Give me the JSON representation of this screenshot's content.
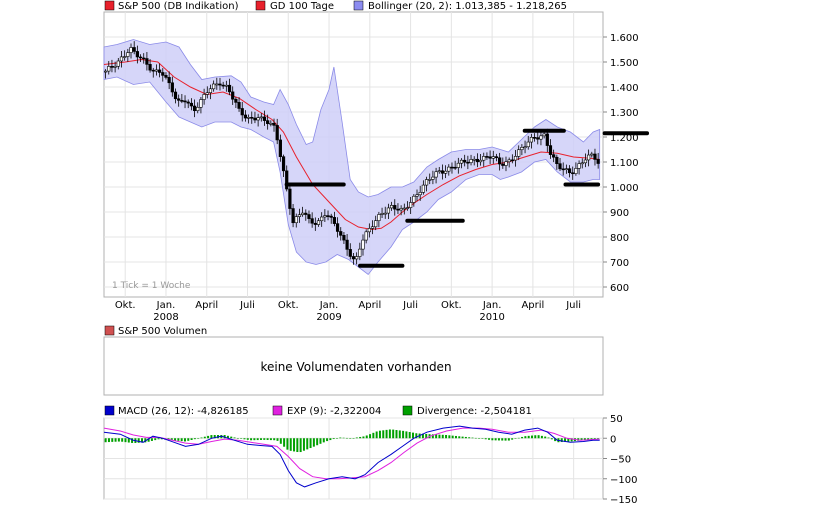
{
  "chart_data": [
    {
      "type": "candlestick",
      "legend": [
        {
          "label": "S&P 500 (DB Indikation)",
          "color": "#e8212c"
        },
        {
          "label": "GD 100 Tage",
          "color": "#e8212c"
        },
        {
          "label": "Bollinger (20, 2): 1.013,385 - 1.218,265",
          "color": "#8c8cf0"
        }
      ],
      "ylim": [
        560,
        1700
      ],
      "yticks": [
        600,
        700,
        800,
        900,
        1000,
        1100,
        1200,
        1300,
        1400,
        1500,
        1600
      ],
      "ytick_labels": [
        "600",
        "700",
        "800",
        "900",
        "1.000",
        "1.100",
        "1.200",
        "1.300",
        "1.400",
        "1.500",
        "1.600"
      ],
      "xlim": [
        2007.62,
        2010.68
      ],
      "xticks": [
        {
          "x": 2007.75,
          "label": "Okt.",
          "year": ""
        },
        {
          "x": 2008.0,
          "label": "Jan.",
          "year": "2008"
        },
        {
          "x": 2008.25,
          "label": "April",
          "year": ""
        },
        {
          "x": 2008.5,
          "label": "Juli",
          "year": ""
        },
        {
          "x": 2008.75,
          "label": "Okt.",
          "year": ""
        },
        {
          "x": 2009.0,
          "label": "Jan.",
          "year": "2009"
        },
        {
          "x": 2009.25,
          "label": "April",
          "year": ""
        },
        {
          "x": 2009.5,
          "label": "Juli",
          "year": ""
        },
        {
          "x": 2009.75,
          "label": "Okt.",
          "year": ""
        },
        {
          "x": 2010.0,
          "label": "Jan.",
          "year": "2010"
        },
        {
          "x": 2010.25,
          "label": "April",
          "year": ""
        },
        {
          "x": 2010.5,
          "label": "Juli",
          "year": ""
        }
      ],
      "price_path": [
        [
          2007.62,
          1460
        ],
        [
          2007.7,
          1490
        ],
        [
          2007.78,
          1560
        ],
        [
          2007.85,
          1510
        ],
        [
          2007.92,
          1460
        ],
        [
          2007.97,
          1470
        ],
        [
          2008.03,
          1400
        ],
        [
          2008.07,
          1330
        ],
        [
          2008.12,
          1350
        ],
        [
          2008.17,
          1310
        ],
        [
          2008.21,
          1340
        ],
        [
          2008.26,
          1385
        ],
        [
          2008.33,
          1420
        ],
        [
          2008.38,
          1400
        ],
        [
          2008.45,
          1300
        ],
        [
          2008.5,
          1270
        ],
        [
          2008.56,
          1285
        ],
        [
          2008.62,
          1260
        ],
        [
          2008.67,
          1230
        ],
        [
          2008.71,
          1100
        ],
        [
          2008.75,
          960
        ],
        [
          2008.78,
          860
        ],
        [
          2008.84,
          900
        ],
        [
          2008.88,
          860
        ],
        [
          2008.93,
          860
        ],
        [
          2008.98,
          900
        ],
        [
          2009.04,
          840
        ],
        [
          2009.1,
          770
        ],
        [
          2009.16,
          700
        ],
        [
          2009.2,
          780
        ],
        [
          2009.26,
          840
        ],
        [
          2009.32,
          900
        ],
        [
          2009.38,
          920
        ],
        [
          2009.45,
          900
        ],
        [
          2009.52,
          960
        ],
        [
          2009.6,
          1020
        ],
        [
          2009.67,
          1060
        ],
        [
          2009.75,
          1080
        ],
        [
          2009.84,
          1100
        ],
        [
          2009.92,
          1115
        ],
        [
          2010.0,
          1120
        ],
        [
          2010.05,
          1090
        ],
        [
          2010.1,
          1105
        ],
        [
          2010.18,
          1150
        ],
        [
          2010.26,
          1200
        ],
        [
          2010.32,
          1210
        ],
        [
          2010.36,
          1130
        ],
        [
          2010.4,
          1080
        ],
        [
          2010.44,
          1070
        ],
        [
          2010.48,
          1060
        ],
        [
          2010.52,
          1080
        ],
        [
          2010.57,
          1110
        ],
        [
          2010.62,
          1125
        ],
        [
          2010.66,
          1090
        ]
      ],
      "gd100_path": [
        [
          2007.62,
          1490
        ],
        [
          2007.75,
          1500
        ],
        [
          2007.85,
          1510
        ],
        [
          2007.95,
          1500
        ],
        [
          2008.05,
          1440
        ],
        [
          2008.15,
          1400
        ],
        [
          2008.25,
          1370
        ],
        [
          2008.35,
          1380
        ],
        [
          2008.45,
          1355
        ],
        [
          2008.55,
          1310
        ],
        [
          2008.65,
          1270
        ],
        [
          2008.72,
          1220
        ],
        [
          2008.8,
          1120
        ],
        [
          2008.9,
          1010
        ],
        [
          2009.0,
          940
        ],
        [
          2009.1,
          870
        ],
        [
          2009.18,
          840
        ],
        [
          2009.26,
          830
        ],
        [
          2009.32,
          835
        ],
        [
          2009.38,
          860
        ],
        [
          2009.45,
          900
        ],
        [
          2009.52,
          935
        ],
        [
          2009.6,
          970
        ],
        [
          2009.7,
          1010
        ],
        [
          2009.8,
          1045
        ],
        [
          2009.9,
          1070
        ],
        [
          2010.0,
          1090
        ],
        [
          2010.1,
          1100
        ],
        [
          2010.2,
          1120
        ],
        [
          2010.3,
          1140
        ],
        [
          2010.4,
          1135
        ],
        [
          2010.5,
          1120
        ],
        [
          2010.6,
          1115
        ],
        [
          2010.66,
          1110
        ]
      ],
      "bollinger_upper": [
        [
          2007.62,
          1560
        ],
        [
          2007.7,
          1570
        ],
        [
          2007.8,
          1590
        ],
        [
          2007.9,
          1570
        ],
        [
          2008.0,
          1580
        ],
        [
          2008.08,
          1560
        ],
        [
          2008.15,
          1490
        ],
        [
          2008.22,
          1430
        ],
        [
          2008.3,
          1440
        ],
        [
          2008.4,
          1445
        ],
        [
          2008.46,
          1420
        ],
        [
          2008.52,
          1360
        ],
        [
          2008.6,
          1340
        ],
        [
          2008.66,
          1330
        ],
        [
          2008.7,
          1390
        ],
        [
          2008.75,
          1330
        ],
        [
          2008.8,
          1250
        ],
        [
          2008.86,
          1170
        ],
        [
          2008.9,
          1180
        ],
        [
          2008.95,
          1310
        ],
        [
          2009.0,
          1390
        ],
        [
          2009.03,
          1480
        ],
        [
          2009.08,
          1260
        ],
        [
          2009.13,
          1030
        ],
        [
          2009.18,
          980
        ],
        [
          2009.24,
          960
        ],
        [
          2009.3,
          970
        ],
        [
          2009.38,
          1000
        ],
        [
          2009.45,
          1000
        ],
        [
          2009.52,
          1020
        ],
        [
          2009.6,
          1080
        ],
        [
          2009.67,
          1110
        ],
        [
          2009.75,
          1140
        ],
        [
          2009.84,
          1150
        ],
        [
          2009.92,
          1150
        ],
        [
          2010.0,
          1160
        ],
        [
          2010.05,
          1150
        ],
        [
          2010.1,
          1140
        ],
        [
          2010.18,
          1190
        ],
        [
          2010.26,
          1240
        ],
        [
          2010.33,
          1270
        ],
        [
          2010.4,
          1240
        ],
        [
          2010.48,
          1220
        ],
        [
          2010.56,
          1180
        ],
        [
          2010.62,
          1220
        ],
        [
          2010.66,
          1230
        ]
      ],
      "bollinger_lower": [
        [
          2007.62,
          1430
        ],
        [
          2007.7,
          1440
        ],
        [
          2007.8,
          1410
        ],
        [
          2007.9,
          1420
        ],
        [
          2008.0,
          1340
        ],
        [
          2008.08,
          1280
        ],
        [
          2008.15,
          1260
        ],
        [
          2008.22,
          1240
        ],
        [
          2008.3,
          1260
        ],
        [
          2008.4,
          1260
        ],
        [
          2008.46,
          1240
        ],
        [
          2008.52,
          1230
        ],
        [
          2008.6,
          1200
        ],
        [
          2008.66,
          1180
        ],
        [
          2008.7,
          1060
        ],
        [
          2008.75,
          850
        ],
        [
          2008.8,
          740
        ],
        [
          2008.86,
          700
        ],
        [
          2008.92,
          690
        ],
        [
          2008.98,
          700
        ],
        [
          2009.05,
          730
        ],
        [
          2009.12,
          710
        ],
        [
          2009.18,
          680
        ],
        [
          2009.24,
          650
        ],
        [
          2009.3,
          700
        ],
        [
          2009.38,
          760
        ],
        [
          2009.45,
          830
        ],
        [
          2009.52,
          860
        ],
        [
          2009.6,
          900
        ],
        [
          2009.67,
          950
        ],
        [
          2009.75,
          980
        ],
        [
          2009.84,
          1030
        ],
        [
          2009.92,
          1050
        ],
        [
          2010.0,
          1050
        ],
        [
          2010.05,
          1030
        ],
        [
          2010.1,
          1040
        ],
        [
          2010.18,
          1060
        ],
        [
          2010.26,
          1100
        ],
        [
          2010.33,
          1110
        ],
        [
          2010.4,
          1060
        ],
        [
          2010.48,
          1020
        ],
        [
          2010.56,
          1020
        ],
        [
          2010.62,
          1030
        ],
        [
          2010.66,
          1030
        ]
      ],
      "support_resistance_marks": [
        {
          "x1": 2008.74,
          "x2": 2009.09,
          "y": 1010
        },
        {
          "x1": 2009.19,
          "x2": 2009.45,
          "y": 685
        },
        {
          "x1": 2009.48,
          "x2": 2009.82,
          "y": 865
        },
        {
          "x1": 2010.2,
          "x2": 2010.44,
          "y": 1225
        },
        {
          "x1": 2010.45,
          "x2": 2010.65,
          "y": 1010
        },
        {
          "x1": 2010.69,
          "x2": 2010.95,
          "y": 1215
        }
      ],
      "note": "1 Tick = 1 Woche"
    },
    {
      "type": "volume",
      "legend": [
        {
          "label": "S&P 500 Volumen",
          "color": "#d05050"
        }
      ],
      "message": "keine Volumendaten vorhanden"
    },
    {
      "type": "line",
      "legend": [
        {
          "label": "MACD (26, 12): -4,826185",
          "color": "#0000cc"
        },
        {
          "label": "EXP (9): -2,322004",
          "color": "#e020e0"
        },
        {
          "label": "Divergence: -2,504181",
          "color": "#00a000"
        }
      ],
      "ylim": [
        -150,
        50
      ],
      "yticks": [
        50,
        0,
        -50,
        -100,
        -150
      ],
      "ytick_labels": [
        "50",
        "0",
        "−50",
        "−100",
        "−150"
      ],
      "macd_path": [
        [
          2007.62,
          15
        ],
        [
          2007.72,
          10
        ],
        [
          2007.8,
          -5
        ],
        [
          2007.86,
          -10
        ],
        [
          2007.92,
          5
        ],
        [
          2007.98,
          0
        ],
        [
          2008.05,
          -10
        ],
        [
          2008.12,
          -20
        ],
        [
          2008.2,
          -15
        ],
        [
          2008.28,
          0
        ],
        [
          2008.34,
          5
        ],
        [
          2008.42,
          -5
        ],
        [
          2008.5,
          -15
        ],
        [
          2008.58,
          -18
        ],
        [
          2008.65,
          -20
        ],
        [
          2008.7,
          -40
        ],
        [
          2008.75,
          -80
        ],
        [
          2008.8,
          -110
        ],
        [
          2008.85,
          -120
        ],
        [
          2008.92,
          -110
        ],
        [
          2009.0,
          -100
        ],
        [
          2009.08,
          -95
        ],
        [
          2009.16,
          -100
        ],
        [
          2009.22,
          -90
        ],
        [
          2009.3,
          -60
        ],
        [
          2009.38,
          -40
        ],
        [
          2009.45,
          -20
        ],
        [
          2009.52,
          0
        ],
        [
          2009.6,
          15
        ],
        [
          2009.7,
          25
        ],
        [
          2009.8,
          30
        ],
        [
          2009.88,
          25
        ],
        [
          2009.96,
          22
        ],
        [
          2010.04,
          15
        ],
        [
          2010.12,
          10
        ],
        [
          2010.2,
          20
        ],
        [
          2010.28,
          25
        ],
        [
          2010.34,
          15
        ],
        [
          2010.4,
          -5
        ],
        [
          2010.48,
          -10
        ],
        [
          2010.56,
          -8
        ],
        [
          2010.62,
          -5
        ],
        [
          2010.66,
          -5
        ]
      ],
      "exp_path": [
        [
          2007.62,
          25
        ],
        [
          2007.72,
          18
        ],
        [
          2007.8,
          8
        ],
        [
          2007.88,
          2
        ],
        [
          2007.96,
          2
        ],
        [
          2008.04,
          -5
        ],
        [
          2008.12,
          -12
        ],
        [
          2008.2,
          -15
        ],
        [
          2008.28,
          -8
        ],
        [
          2008.36,
          -2
        ],
        [
          2008.44,
          -5
        ],
        [
          2008.52,
          -10
        ],
        [
          2008.6,
          -15
        ],
        [
          2008.68,
          -20
        ],
        [
          2008.75,
          -45
        ],
        [
          2008.82,
          -75
        ],
        [
          2008.9,
          -95
        ],
        [
          2008.98,
          -100
        ],
        [
          2009.06,
          -100
        ],
        [
          2009.14,
          -98
        ],
        [
          2009.22,
          -95
        ],
        [
          2009.3,
          -80
        ],
        [
          2009.38,
          -60
        ],
        [
          2009.46,
          -35
        ],
        [
          2009.54,
          -12
        ],
        [
          2009.62,
          5
        ],
        [
          2009.72,
          18
        ],
        [
          2009.82,
          25
        ],
        [
          2009.92,
          25
        ],
        [
          2010.0,
          22
        ],
        [
          2010.1,
          15
        ],
        [
          2010.2,
          15
        ],
        [
          2010.3,
          20
        ],
        [
          2010.38,
          12
        ],
        [
          2010.46,
          0
        ],
        [
          2010.54,
          -5
        ],
        [
          2010.62,
          -3
        ],
        [
          2010.66,
          -2
        ]
      ],
      "divergence_path": [
        [
          2007.62,
          -10
        ],
        [
          2007.72,
          -8
        ],
        [
          2007.8,
          -12
        ],
        [
          2007.88,
          -10
        ],
        [
          2007.96,
          -2
        ],
        [
          2008.04,
          -5
        ],
        [
          2008.12,
          -8
        ],
        [
          2008.2,
          0
        ],
        [
          2008.28,
          8
        ],
        [
          2008.36,
          8
        ],
        [
          2008.44,
          0
        ],
        [
          2008.52,
          -5
        ],
        [
          2008.6,
          -4
        ],
        [
          2008.68,
          -5
        ],
        [
          2008.75,
          -30
        ],
        [
          2008.82,
          -35
        ],
        [
          2008.9,
          -22
        ],
        [
          2008.98,
          -8
        ],
        [
          2009.06,
          2
        ],
        [
          2009.14,
          0
        ],
        [
          2009.22,
          5
        ],
        [
          2009.3,
          18
        ],
        [
          2009.38,
          22
        ],
        [
          2009.46,
          18
        ],
        [
          2009.54,
          12
        ],
        [
          2009.62,
          10
        ],
        [
          2009.72,
          8
        ],
        [
          2009.82,
          4
        ],
        [
          2009.92,
          0
        ],
        [
          2010.0,
          -5
        ],
        [
          2010.1,
          -6
        ],
        [
          2010.2,
          5
        ],
        [
          2010.28,
          8
        ],
        [
          2010.34,
          3
        ],
        [
          2010.4,
          -10
        ],
        [
          2010.48,
          -8
        ],
        [
          2010.56,
          -5
        ],
        [
          2010.62,
          -3
        ],
        [
          2010.66,
          -2
        ]
      ]
    }
  ]
}
